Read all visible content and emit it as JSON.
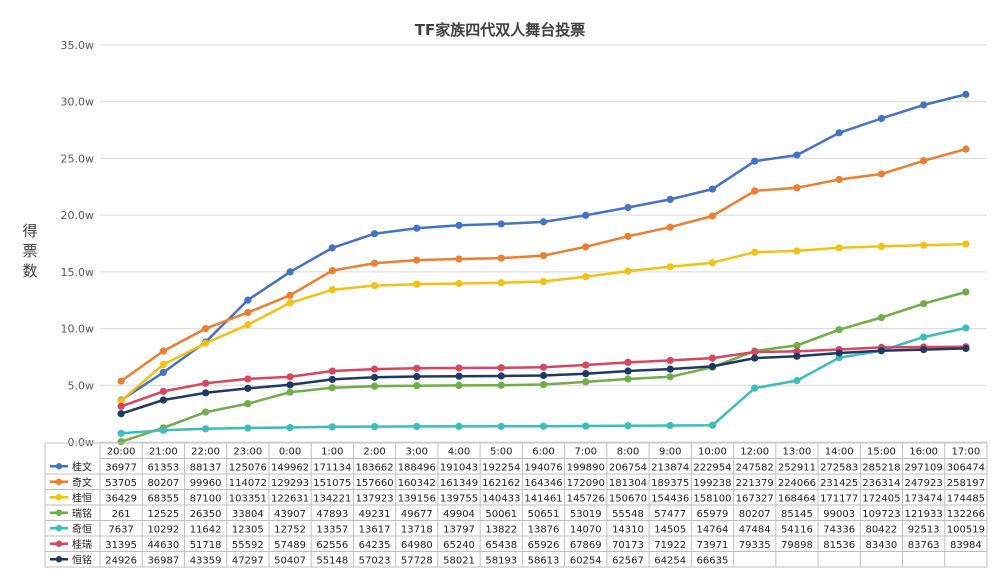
{
  "chart_data": {
    "type": "line",
    "title": "TF家族四代双人舞台投票",
    "ylabel": "得票数",
    "xlabel": "",
    "ylim": [
      0,
      350000
    ],
    "ytick_values": [
      0,
      50000,
      100000,
      150000,
      200000,
      250000,
      300000,
      350000
    ],
    "ytick_labels": [
      "0.0w",
      "5.0w",
      "10.0w",
      "15.0w",
      "20.0w",
      "25.0w",
      "30.0w",
      "35.0w"
    ],
    "categories": [
      "20:00",
      "21:00",
      "22:00",
      "23:00",
      "0:00",
      "1:00",
      "2:00",
      "3:00",
      "4:00",
      "5:00",
      "6:00",
      "7:00",
      "8:00",
      "9:00",
      "10:00",
      "12:00",
      "13:00",
      "14:00",
      "15:00",
      "16:00",
      "17:00"
    ],
    "grid": true,
    "legend": "data-table",
    "series": [
      {
        "name": "桂文",
        "color": "#4472C4",
        "values": [
          36977,
          61353,
          88137,
          125076,
          149962,
          171134,
          183662,
          188496,
          191043,
          192254,
          194076,
          199890,
          206754,
          213874,
          222954,
          247582,
          252911,
          272583,
          285218,
          297109,
          306474
        ]
      },
      {
        "name": "奇文",
        "color": "#ED7D31",
        "values": [
          53705,
          80207,
          99960,
          114072,
          129293,
          151075,
          157660,
          160342,
          161349,
          162162,
          164346,
          172090,
          181304,
          189375,
          199238,
          221379,
          224066,
          231425,
          236314,
          247923,
          258197
        ]
      },
      {
        "name": "桂恒",
        "color": "#F2C112",
        "values": [
          36429,
          68355,
          87100,
          103351,
          122631,
          134221,
          137923,
          139156,
          139755,
          140433,
          141461,
          145726,
          150670,
          154436,
          158100,
          167327,
          168464,
          171177,
          172405,
          173474,
          174485
        ]
      },
      {
        "name": "瑞铭",
        "color": "#70AD47",
        "values": [
          261,
          12525,
          26350,
          33804,
          43907,
          47893,
          49231,
          49677,
          49904,
          50061,
          50651,
          53019,
          55548,
          57477,
          65979,
          80207,
          85145,
          99003,
          109723,
          121933,
          132266
        ]
      },
      {
        "name": "奇恒",
        "color": "#3CBDBD",
        "values": [
          7637,
          10292,
          11642,
          12305,
          12752,
          13357,
          13617,
          13718,
          13797,
          13822,
          13876,
          14070,
          14310,
          14505,
          14764,
          47484,
          54116,
          74336,
          80422,
          92513,
          100519
        ]
      },
      {
        "name": "桂瑞",
        "color": "#D9455F",
        "values": [
          31395,
          44630,
          51718,
          55592,
          57489,
          62556,
          64235,
          64980,
          65240,
          65438,
          65926,
          67869,
          70173,
          71922,
          73971,
          79335,
          79898,
          81536,
          83430,
          83763,
          83984
        ]
      },
      {
        "name": "恒铭",
        "color": "#1F3864",
        "values": [
          24926,
          36987,
          43359,
          47297,
          50407,
          55148,
          57023,
          57728,
          58021,
          58193,
          58613,
          60254,
          62567,
          64254,
          66635,
          74000,
          75600,
          78500,
          80500,
          81500,
          82500
        ]
      }
    ],
    "table_cells": [
      [
        "36977",
        "61353",
        "88137",
        "125076",
        "149962",
        "171134",
        "183662",
        "188496",
        "191043",
        "192254",
        "194076",
        "199890",
        "206754",
        "213874",
        "222954",
        "247582",
        "252911",
        "272583",
        "285218",
        "297109",
        "306474"
      ],
      [
        "53705",
        "80207",
        "99960",
        "114072",
        "129293",
        "151075",
        "157660",
        "160342",
        "161349",
        "162162",
        "164346",
        "172090",
        "181304",
        "189375",
        "199238",
        "221379",
        "224066",
        "231425",
        "236314",
        "247923",
        "258197"
      ],
      [
        "36429",
        "68355",
        "87100",
        "103351",
        "122631",
        "134221",
        "137923",
        "139156",
        "139755",
        "140433",
        "141461",
        "145726",
        "150670",
        "154436",
        "158100",
        "167327",
        "168464",
        "171177",
        "172405",
        "173474",
        "174485"
      ],
      [
        "261",
        "12525",
        "26350",
        "33804",
        "43907",
        "47893",
        "49231",
        "49677",
        "49904",
        "50061",
        "50651",
        "53019",
        "55548",
        "57477",
        "65979",
        "80207",
        "85145",
        "99003",
        "109723",
        "121933",
        "132266"
      ],
      [
        "7637",
        "10292",
        "11642",
        "12305",
        "12752",
        "13357",
        "13617",
        "13718",
        "13797",
        "13822",
        "13876",
        "14070",
        "14310",
        "14505",
        "14764",
        "47484",
        "54116",
        "74336",
        "80422",
        "92513",
        "100519"
      ],
      [
        "31395",
        "44630",
        "51718",
        "55592",
        "57489",
        "62556",
        "64235",
        "64980",
        "65240",
        "65438",
        "65926",
        "67869",
        "70173",
        "71922",
        "73971",
        "79335",
        "79898",
        "81536",
        "83430",
        "83763",
        "83984"
      ],
      [
        "24926",
        "36987",
        "43359",
        "47297",
        "50407",
        "55148",
        "57023",
        "57728",
        "58021",
        "58193",
        "58613",
        "60254",
        "62567",
        "64254",
        "66635",
        "",
        "",
        "",
        "",
        "",
        ""
      ]
    ]
  }
}
